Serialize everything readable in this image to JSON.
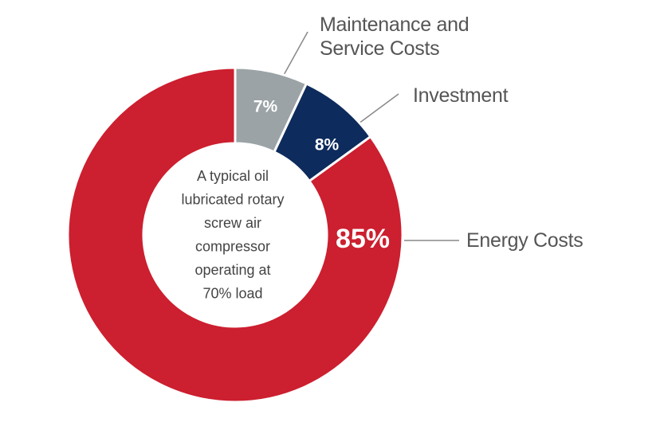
{
  "chart_data": {
    "type": "pie",
    "categories": [
      "Maintenance and Service Costs",
      "Investment",
      "Energy Costs"
    ],
    "values": [
      7,
      8,
      85
    ],
    "value_labels": [
      "7%",
      "8%",
      "85%"
    ],
    "colors": [
      "#9ba3a6",
      "#0d2b5c",
      "#cc1f2f"
    ],
    "center_text": [
      "A typical oil",
      "lubricated rotary",
      "screw air",
      "compressor",
      "operating at",
      "70% load"
    ]
  }
}
